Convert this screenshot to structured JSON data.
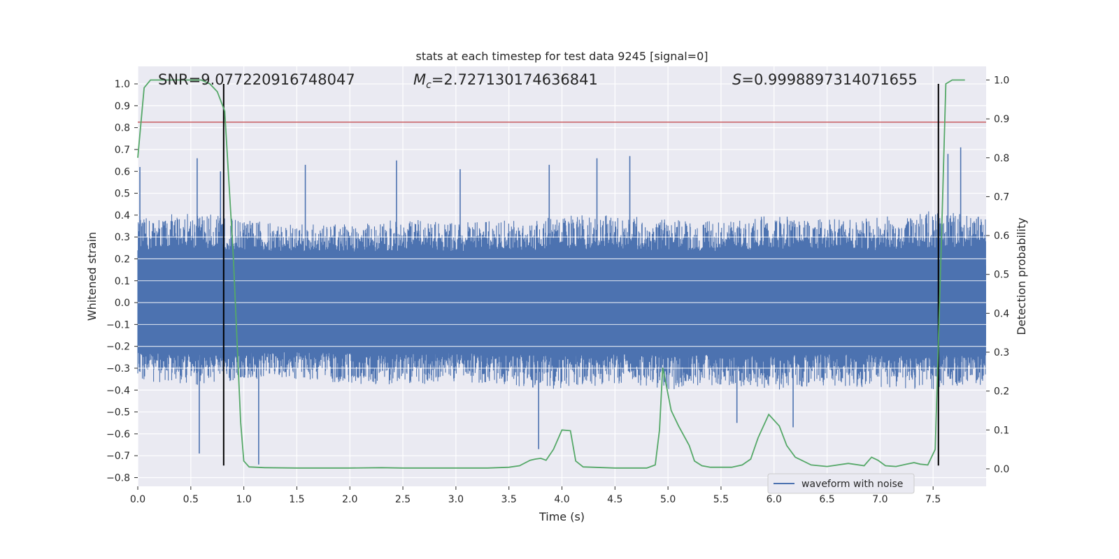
{
  "chart_data": {
    "type": "line",
    "title": "stats at each timestep for test data 9245 [signal=0]",
    "xlabel": "Time (s)",
    "ylabel": "Whitened strain",
    "y2label": "Detection probability",
    "xlim": [
      0.0,
      8.0
    ],
    "ylim": [
      -0.84,
      1.08
    ],
    "y2lim": [
      -0.045,
      1.035
    ],
    "x_ticks": [
      "0.0",
      "0.5",
      "1.0",
      "1.5",
      "2.0",
      "2.5",
      "3.0",
      "3.5",
      "4.0",
      "4.5",
      "5.0",
      "5.5",
      "6.0",
      "6.5",
      "7.0",
      "7.5"
    ],
    "y_ticks": [
      "1.0",
      "0.9",
      "0.8",
      "0.7",
      "0.6",
      "0.5",
      "0.4",
      "0.3",
      "0.2",
      "0.1",
      "0.0",
      "−0.1",
      "−0.2",
      "−0.3",
      "−0.4",
      "−0.5",
      "−0.6",
      "−0.7",
      "−0.8"
    ],
    "y2_ticks": [
      "1.0",
      "0.9",
      "0.8",
      "0.7",
      "0.6",
      "0.5",
      "0.4",
      "0.3",
      "0.2",
      "0.1",
      "0.0"
    ],
    "grid": true,
    "legend_position": "lower-right",
    "annotations": {
      "snr": "SNR=9.077220916748047",
      "mc_symbol": "M",
      "mc_sub": "c",
      "mc_value": "=2.727130174636841",
      "s_symbol": "S",
      "s_value": "=0.9998897314071655"
    },
    "series": [
      {
        "name": "waveform with noise",
        "axis": "left",
        "color": "#4c72b0",
        "envelope_x": [
          0.0,
          0.5,
          1.0,
          1.5,
          2.0,
          2.5,
          3.0,
          3.5,
          4.0,
          4.5,
          5.0,
          5.5,
          6.0,
          6.5,
          7.0,
          7.5,
          8.0
        ],
        "envelope_upper": [
          0.38,
          0.42,
          0.38,
          0.36,
          0.36,
          0.38,
          0.37,
          0.38,
          0.4,
          0.4,
          0.38,
          0.37,
          0.4,
          0.38,
          0.39,
          0.42,
          0.4
        ],
        "envelope_lower": [
          -0.36,
          -0.38,
          -0.36,
          -0.35,
          -0.37,
          -0.38,
          -0.36,
          -0.38,
          -0.4,
          -0.37,
          -0.4,
          -0.38,
          -0.4,
          -0.38,
          -0.39,
          -0.4,
          -0.38
        ],
        "spikes": [
          [
            0.02,
            0.62
          ],
          [
            0.56,
            0.66
          ],
          [
            0.58,
            -0.69
          ],
          [
            0.78,
            0.6
          ],
          [
            1.14,
            -0.74
          ],
          [
            1.58,
            0.63
          ],
          [
            2.44,
            0.65
          ],
          [
            3.04,
            0.61
          ],
          [
            3.88,
            0.63
          ],
          [
            3.78,
            -0.67
          ],
          [
            4.33,
            0.66
          ],
          [
            4.64,
            0.67
          ],
          [
            4.97,
            -0.3
          ],
          [
            5.65,
            -0.55
          ],
          [
            6.18,
            -0.57
          ],
          [
            7.64,
            0.68
          ],
          [
            7.76,
            0.71
          ]
        ]
      },
      {
        "name": "detection probability",
        "axis": "right",
        "color": "#55a868",
        "x": [
          0.0,
          0.06,
          0.12,
          0.2,
          0.3,
          0.45,
          0.6,
          0.68,
          0.75,
          0.82,
          0.9,
          0.97,
          1.0,
          1.05,
          1.2,
          1.5,
          2.0,
          2.3,
          2.5,
          3.0,
          3.3,
          3.5,
          3.6,
          3.7,
          3.75,
          3.8,
          3.85,
          3.92,
          4.0,
          4.08,
          4.13,
          4.2,
          4.5,
          4.8,
          4.88,
          4.92,
          4.95,
          4.98,
          5.03,
          5.1,
          5.2,
          5.25,
          5.32,
          5.4,
          5.6,
          5.7,
          5.78,
          5.85,
          5.95,
          6.05,
          6.12,
          6.2,
          6.35,
          6.5,
          6.7,
          6.85,
          6.92,
          6.98,
          7.05,
          7.15,
          7.25,
          7.32,
          7.38,
          7.45,
          7.52,
          7.58,
          7.62,
          7.68,
          7.8
        ],
        "y": [
          0.8,
          0.98,
          1.0,
          1.0,
          1.0,
          1.0,
          1.0,
          0.99,
          0.97,
          0.92,
          0.55,
          0.12,
          0.02,
          0.005,
          0.003,
          0.002,
          0.002,
          0.003,
          0.002,
          0.002,
          0.002,
          0.004,
          0.008,
          0.022,
          0.025,
          0.027,
          0.022,
          0.05,
          0.1,
          0.098,
          0.02,
          0.005,
          0.002,
          0.002,
          0.01,
          0.1,
          0.26,
          0.22,
          0.15,
          0.11,
          0.06,
          0.02,
          0.008,
          0.004,
          0.004,
          0.01,
          0.025,
          0.08,
          0.14,
          0.11,
          0.06,
          0.03,
          0.01,
          0.006,
          0.014,
          0.008,
          0.03,
          0.022,
          0.008,
          0.006,
          0.012,
          0.016,
          0.012,
          0.01,
          0.05,
          0.6,
          0.99,
          1.0,
          1.0
        ]
      }
    ],
    "reference_lines": [
      {
        "orientation": "horizontal",
        "axis": "left",
        "value": 0.825,
        "color": "#c44e52"
      },
      {
        "orientation": "vertical",
        "value": 0.81,
        "color": "#000000",
        "y_from": -0.745,
        "y_to": 1.0
      },
      {
        "orientation": "vertical",
        "value": 7.55,
        "color": "#000000",
        "y_from": -0.745,
        "y_to": 1.0
      }
    ]
  }
}
